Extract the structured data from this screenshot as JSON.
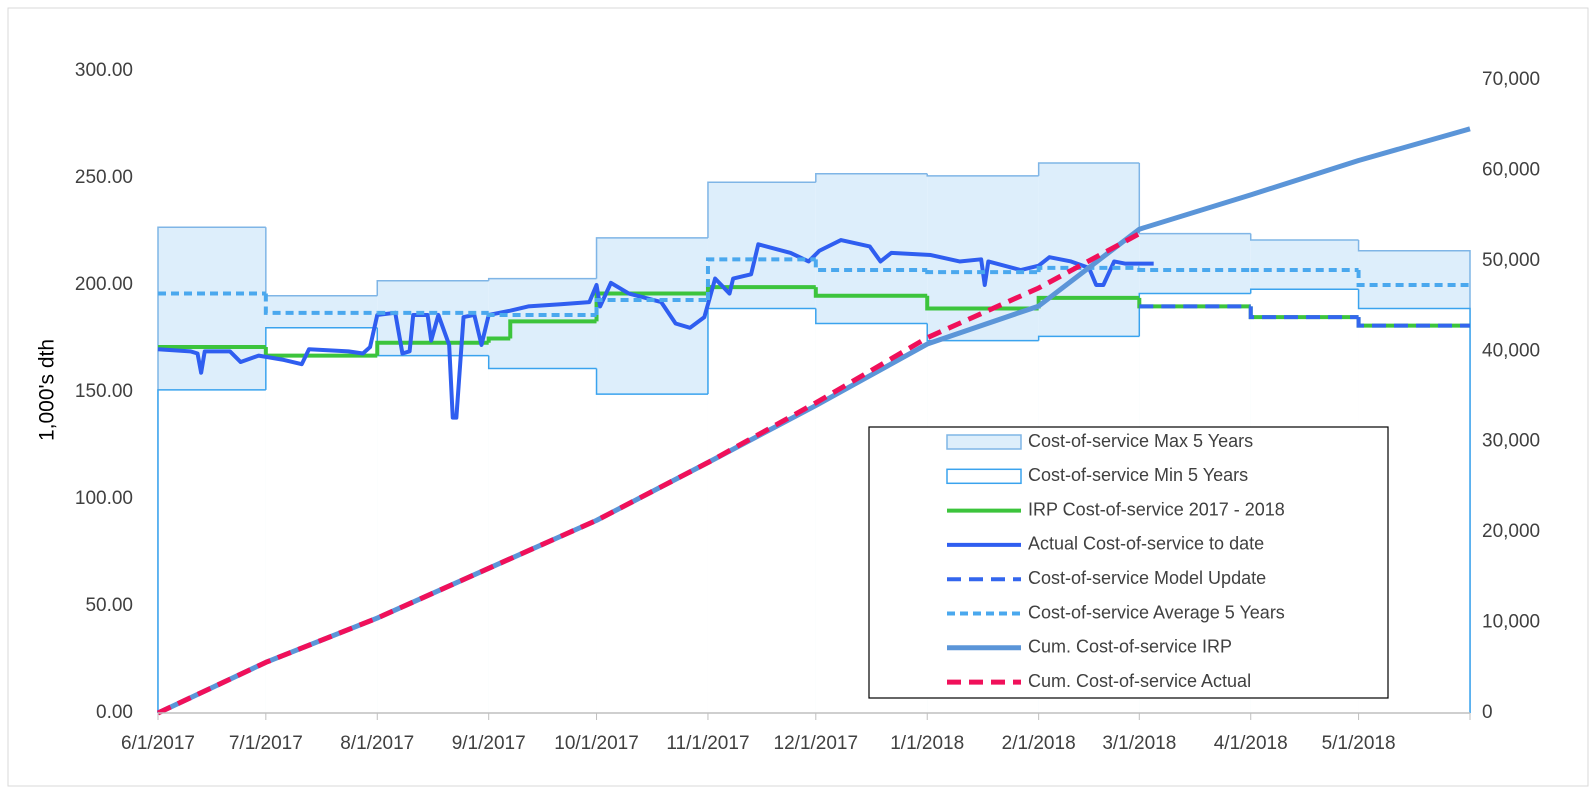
{
  "chart_data": {
    "type": "line",
    "y_label": "1,000's dth",
    "xlim": [
      0,
      365
    ],
    "ylim": [
      0,
      300
    ],
    "y2lim": [
      0,
      70000
    ],
    "xticks": [
      {
        "value": 0,
        "label": "6/1/2017"
      },
      {
        "value": 30,
        "label": "7/1/2017"
      },
      {
        "value": 61,
        "label": "8/1/2017"
      },
      {
        "value": 92,
        "label": "9/1/2017"
      },
      {
        "value": 122,
        "label": "10/1/2017"
      },
      {
        "value": 153,
        "label": "11/1/2017"
      },
      {
        "value": 183,
        "label": "12/1/2017"
      },
      {
        "value": 214,
        "label": "1/1/2018"
      },
      {
        "value": 245,
        "label": "2/1/2018"
      },
      {
        "value": 273,
        "label": "3/1/2018"
      },
      {
        "value": 304,
        "label": "4/1/2018"
      },
      {
        "value": 334,
        "label": "5/1/2018"
      }
    ],
    "yticks": [
      {
        "value": 0,
        "label": "0.00"
      },
      {
        "value": 50,
        "label": "50.00"
      },
      {
        "value": 100,
        "label": "100.00"
      },
      {
        "value": 150,
        "label": "150.00"
      },
      {
        "value": 200,
        "label": "200.00"
      },
      {
        "value": 250,
        "label": "250.00"
      },
      {
        "value": 300,
        "label": "300.00"
      }
    ],
    "y2ticks": [
      0,
      {
        "value": 10000,
        "label": "10,000"
      },
      {
        "value": 20000,
        "label": "20,000"
      },
      {
        "value": 30000,
        "label": "30,000"
      },
      {
        "value": 40000,
        "label": "40,000"
      },
      {
        "value": 50000,
        "label": "50,000"
      },
      {
        "value": 60000,
        "label": "60,000"
      },
      {
        "value": 70000,
        "label": "70,000"
      }
    ],
    "series": [
      {
        "name": "Cost-of-service Max 5 Years",
        "mark": "area",
        "color": "#ddeefb",
        "edge": "#7fb5e6",
        "x": [
          0,
          30,
          61,
          92,
          122,
          153,
          183,
          214,
          245,
          273,
          304,
          334
        ],
        "values": [
          227,
          195,
          202,
          203,
          222,
          248,
          252,
          251,
          257,
          224,
          221,
          216
        ]
      },
      {
        "name": "Cost-of-service Min 5 Years",
        "mark": "area",
        "color": "#ffffff",
        "edge": "#3aa3ee",
        "x": [
          0,
          30,
          61,
          92,
          122,
          153,
          183,
          214,
          245,
          273,
          304,
          334
        ],
        "values": [
          151,
          180,
          167,
          161,
          149,
          189,
          182,
          174,
          176,
          196,
          198,
          189
        ]
      },
      {
        "name": "IRP Cost-of-service 2017 - 2018",
        "mark": "step",
        "color": "#3cc43c",
        "x": [
          0,
          30,
          61,
          92,
          98,
          122,
          153,
          183,
          214,
          245,
          273,
          304,
          334
        ],
        "values": [
          171,
          167,
          173,
          175,
          183,
          196,
          199,
          195,
          189,
          194,
          190,
          185,
          181
        ]
      },
      {
        "name": "Actual Cost-of-service to date",
        "mark": "line",
        "color": "#2f5ef0",
        "x": [
          0,
          9,
          11,
          12,
          13,
          20,
          23,
          28,
          35,
          40,
          42,
          53,
          57,
          59,
          61,
          66,
          68,
          70,
          71,
          75,
          76,
          78,
          81,
          82,
          83,
          85,
          88,
          90,
          92,
          98,
          103,
          112,
          120,
          122,
          123,
          126,
          131,
          140,
          144,
          148,
          152,
          155,
          159,
          160,
          165,
          167,
          176,
          181,
          184,
          190,
          198,
          201,
          204,
          215,
          223,
          229,
          230,
          231,
          240,
          245,
          248,
          254,
          259,
          261,
          263,
          266,
          269,
          277
        ],
        "values": [
          170,
          169,
          168,
          159,
          169,
          169,
          164,
          167,
          165,
          163,
          170,
          169,
          168,
          171,
          186,
          187,
          168,
          169,
          186,
          186,
          174,
          186,
          172,
          138,
          138,
          185,
          186,
          172,
          186,
          188,
          190,
          191,
          192,
          200,
          190,
          201,
          196,
          192,
          182,
          180,
          185,
          203,
          196,
          203,
          205,
          219,
          215,
          211,
          216,
          221,
          218,
          211,
          215,
          214,
          211,
          212,
          200,
          211,
          207,
          209,
          213,
          211,
          208,
          200,
          200,
          211,
          210,
          210
        ]
      },
      {
        "name": "Cost-of-service Model Update",
        "mark": "step",
        "dashed": true,
        "color": "#3366ee",
        "x": [
          273,
          304,
          334
        ],
        "values": [
          190,
          185,
          181
        ]
      },
      {
        "name": "Cost-of-service Average 5 Years",
        "mark": "step",
        "dashed": true,
        "color": "#4aa8ee",
        "x": [
          0,
          30,
          61,
          92,
          122,
          153,
          183,
          214,
          245,
          273,
          304,
          334
        ],
        "values": [
          196,
          187,
          187,
          186,
          193,
          212,
          207,
          206,
          208,
          207,
          207,
          200
        ]
      },
      {
        "name": "Cum. Cost-of-service IRP",
        "mark": "line",
        "axis": "y2",
        "color": "#5b95d8",
        "x": [
          0,
          30,
          61,
          92,
          122,
          153,
          183,
          214,
          245,
          273,
          304,
          334,
          365
        ],
        "values": [
          0,
          5600,
          10500,
          16000,
          21300,
          27700,
          34000,
          40800,
          45000,
          53500,
          57300,
          61100,
          64600
        ]
      },
      {
        "name": "Cum. Cost-of-service Actual",
        "mark": "line",
        "dashed": true,
        "axis": "y2",
        "color": "#f0105a",
        "x": [
          0,
          30,
          61,
          92,
          122,
          153,
          183,
          214,
          245,
          273
        ],
        "values": [
          0,
          5600,
          10500,
          16000,
          21300,
          27700,
          34300,
          41500,
          47000,
          53000
        ]
      }
    ]
  }
}
